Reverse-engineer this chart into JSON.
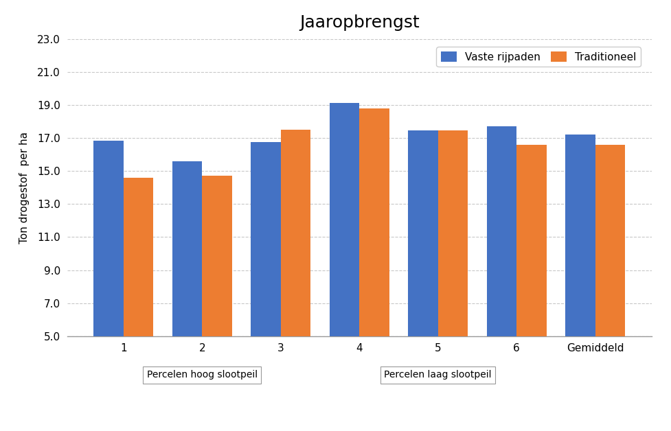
{
  "title": "Jaaropbrengst",
  "ylabel": "Ton drogestof  per ha",
  "categories": [
    "1",
    "2",
    "3",
    "4",
    "5",
    "6",
    "Gemiddeld"
  ],
  "vaste_rijpaden": [
    16.85,
    15.6,
    16.75,
    19.1,
    17.45,
    17.7,
    17.2
  ],
  "traditioneel": [
    14.6,
    14.7,
    17.5,
    18.8,
    17.45,
    16.6,
    16.6
  ],
  "color_vaste": "#4472C4",
  "color_trad": "#ED7D31",
  "ylim_min": 5.0,
  "ylim_max": 23.0,
  "yticks": [
    5.0,
    7.0,
    9.0,
    11.0,
    13.0,
    15.0,
    17.0,
    19.0,
    21.0,
    23.0
  ],
  "legend_vaste": "Vaste rijpaden",
  "legend_trad": "Traditioneel",
  "group1_label": "Percelen hoog slootpeil",
  "group2_label": "Percelen laag slootpeil",
  "group1_indices": [
    0,
    1,
    2
  ],
  "group2_indices": [
    3,
    4,
    5
  ],
  "bar_width": 0.38,
  "background_color": "#ffffff",
  "grid_color": "#c8c8c8"
}
